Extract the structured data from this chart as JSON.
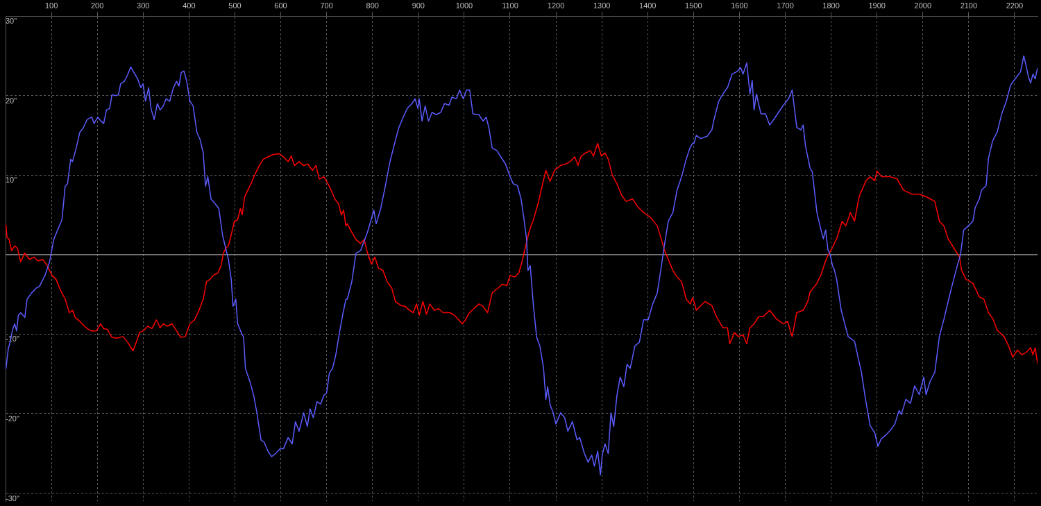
{
  "chart_data": {
    "type": "line",
    "xlim": [
      0,
      2250
    ],
    "xticks": [
      100,
      200,
      300,
      400,
      500,
      600,
      700,
      800,
      900,
      1000,
      1100,
      1200,
      1300,
      1400,
      1500,
      1600,
      1700,
      1800,
      1900,
      2000,
      2100,
      2200
    ],
    "ylim": [
      -31,
      30
    ],
    "yticks": [
      {
        "value": 30,
        "label": "30\""
      },
      {
        "value": 20,
        "label": "20\""
      },
      {
        "value": 10,
        "label": "10\""
      },
      {
        "value": -10,
        "label": "-10\""
      },
      {
        "value": -20,
        "label": "-20\""
      },
      {
        "value": -30,
        "label": "-30\""
      }
    ],
    "grid": true,
    "ref_lines": [
      {
        "axis": "y",
        "value": 0,
        "color": "#a0a0a0"
      }
    ],
    "series": [
      {
        "color": "#5c5cff",
        "x": [
          1,
          6,
          10,
          16,
          20,
          24,
          28,
          33,
          42,
          47,
          57,
          67,
          74,
          86,
          96,
          105,
          115,
          123,
          130,
          135,
          142,
          146,
          154,
          162,
          169,
          178,
          188,
          193,
          201,
          208,
          214,
          220,
          227,
          232,
          240,
          246,
          251,
          259,
          266,
          273,
          280,
          288,
          295,
          300,
          305,
          312,
          317,
          324,
          331,
          337,
          344,
          350,
          358,
          366,
          373,
          378,
          383,
          389,
          395,
          402,
          409,
          417,
          424,
          431,
          436,
          441,
          448,
          457,
          465,
          473,
          480,
          486,
          492,
          496,
          502,
          506,
          514,
          519,
          523,
          533,
          541,
          548,
          557,
          564,
          572,
          580,
          589,
          599,
          606,
          616,
          625,
          632,
          640,
          650,
          658,
          664,
          671,
          679,
          687,
          694,
          700,
          706,
          713,
          720,
          728,
          735,
          742,
          745,
          755,
          764,
          774,
          789,
          803,
          808,
          818,
          828,
          837,
          847,
          857,
          867,
          876,
          886,
          893,
          899,
          902,
          908,
          915,
          922,
          930,
          939,
          949,
          957,
          967,
          973,
          983,
          990,
          998,
          1005,
          1012,
          1019,
          1032,
          1041,
          1048,
          1054,
          1061,
          1071,
          1080,
          1090,
          1100,
          1107,
          1116,
          1124,
          1131,
          1136,
          1139,
          1144,
          1151,
          1158,
          1165,
          1173,
          1178,
          1182,
          1187,
          1194,
          1200,
          1210,
          1219,
          1226,
          1236,
          1246,
          1252,
          1262,
          1270,
          1278,
          1284,
          1291,
          1297,
          1301,
          1307,
          1314,
          1320,
          1326,
          1333,
          1340,
          1348,
          1355,
          1362,
          1372,
          1382,
          1391,
          1401,
          1411,
          1421,
          1430,
          1437,
          1445,
          1455,
          1464,
          1474,
          1484,
          1492,
          1498,
          1501,
          1506,
          1516,
          1530,
          1540,
          1545,
          1555,
          1564,
          1574,
          1584,
          1594,
          1603,
          1608,
          1616,
          1623,
          1628,
          1632,
          1637,
          1647,
          1657,
          1666,
          1676,
          1696,
          1707,
          1715,
          1725,
          1734,
          1739,
          1744,
          1754,
          1759,
          1769,
          1778,
          1783,
          1788,
          1793,
          1798,
          1803,
          1807,
          1812,
          1822,
          1837,
          1851,
          1866,
          1875,
          1885,
          1895,
          1902,
          1909,
          1919,
          1929,
          1939,
          1948,
          1953,
          1963,
          1973,
          1982,
          1992,
          2002,
          2007,
          2016,
          2026,
          2036,
          2046,
          2055,
          2065,
          2075,
          2082,
          2089,
          2099,
          2109,
          2114,
          2123,
          2128,
          2138,
          2143,
          2152,
          2162,
          2172,
          2182,
          2191,
          2201,
          2213,
          2220,
          2225,
          2230,
          2235,
          2240,
          2245,
          2250
        ],
        "values": [
          -14.3,
          -11.8,
          -11.0,
          -9.3,
          -8.7,
          -9.6,
          -7.6,
          -7.3,
          -7.9,
          -5.6,
          -4.8,
          -4.2,
          -4.0,
          -2.6,
          -0.9,
          1.9,
          3.3,
          4.4,
          8.6,
          8.9,
          12.0,
          11.7,
          13.4,
          15.4,
          15.9,
          17.0,
          17.3,
          16.5,
          17.3,
          16.8,
          16.5,
          18.2,
          18.4,
          20.1,
          20.0,
          20.1,
          21.5,
          21.8,
          22.6,
          23.6,
          22.9,
          22.1,
          21.0,
          21.5,
          19.3,
          21.0,
          18.4,
          17.0,
          19.0,
          18.2,
          18.7,
          19.6,
          19.3,
          21.0,
          21.8,
          21.2,
          22.9,
          23.1,
          21.8,
          19.3,
          18.7,
          15.4,
          14.5,
          12.8,
          8.6,
          9.8,
          7.0,
          6.4,
          5.8,
          2.5,
          0.8,
          -0.6,
          -3.1,
          -6.5,
          -5.6,
          -8.7,
          -9.8,
          -10.4,
          -14.3,
          -16.0,
          -17.7,
          -19.9,
          -23.3,
          -23.6,
          -24.7,
          -25.4,
          -25.0,
          -24.4,
          -24.4,
          -23.0,
          -23.8,
          -21.0,
          -22.2,
          -19.9,
          -21.6,
          -19.4,
          -20.5,
          -18.5,
          -18.8,
          -17.7,
          -17.4,
          -14.9,
          -14.3,
          -12.6,
          -9.8,
          -7.6,
          -5.6,
          -5.6,
          -3.4,
          0.2,
          0.5,
          2.8,
          5.6,
          3.9,
          5.8,
          8.6,
          11.4,
          13.7,
          15.9,
          17.3,
          18.4,
          19.0,
          19.6,
          18.4,
          19.6,
          16.8,
          18.7,
          16.8,
          17.9,
          17.6,
          17.9,
          19.0,
          18.8,
          19.8,
          19.6,
          20.7,
          19.6,
          20.7,
          20.7,
          17.7,
          17.6,
          16.8,
          17.3,
          15.9,
          13.4,
          13.1,
          12.3,
          11.4,
          9.8,
          8.9,
          8.7,
          7.0,
          4.2,
          1.9,
          -2.0,
          -1.4,
          -6.5,
          -10.4,
          -11.5,
          -14.3,
          -18.2,
          -16.6,
          -18.8,
          -19.9,
          -21.3,
          -19.9,
          -20.5,
          -22.2,
          -21.0,
          -23.3,
          -23.0,
          -25.0,
          -26.1,
          -25.2,
          -26.6,
          -24.7,
          -27.7,
          -25.2,
          -23.8,
          -25.0,
          -19.9,
          -21.6,
          -17.7,
          -15.4,
          -16.6,
          -13.8,
          -14.3,
          -11.5,
          -11.0,
          -8.2,
          -8.2,
          -6.2,
          -4.8,
          -1.4,
          1.4,
          4.2,
          5.3,
          8.1,
          9.8,
          12.0,
          13.4,
          14.0,
          14.0,
          15.0,
          14.6,
          14.9,
          15.7,
          17.1,
          19.3,
          20.2,
          21.0,
          22.7,
          23.0,
          23.5,
          22.7,
          24.1,
          20.2,
          21.9,
          18.2,
          20.2,
          17.7,
          17.7,
          16.3,
          17.1,
          18.8,
          19.6,
          20.7,
          16.0,
          15.7,
          16.3,
          13.7,
          10.9,
          10.4,
          5.3,
          3.1,
          2.0,
          3.1,
          0.6,
          0.0,
          -1.4,
          -1.9,
          -3.1,
          -7.0,
          -10.3,
          -10.9,
          -14.8,
          -18.2,
          -21.5,
          -22.4,
          -24.1,
          -23.2,
          -22.7,
          -22.1,
          -21.3,
          -19.6,
          -20.1,
          -18.2,
          -18.7,
          -16.5,
          -17.6,
          -15.4,
          -17.6,
          -15.9,
          -14.8,
          -10.3,
          -8.1,
          -5.9,
          -3.6,
          -1.4,
          0.0,
          3.1,
          3.6,
          4.2,
          5.9,
          7.0,
          8.1,
          8.7,
          12.1,
          14.3,
          15.4,
          17.7,
          19.3,
          21.3,
          22.1,
          23.0,
          25.0,
          23.8,
          22.4,
          21.6,
          22.7,
          22.1,
          23.5
        ]
      },
      {
        "color": "#ff0000",
        "x": [
          1,
          3,
          8,
          13,
          20,
          26,
          33,
          42,
          52,
          62,
          71,
          81,
          91,
          101,
          110,
          120,
          130,
          139,
          146,
          152,
          162,
          172,
          181,
          188,
          198,
          207,
          214,
          222,
          232,
          243,
          256,
          266,
          278,
          285,
          292,
          300,
          310,
          319,
          329,
          337,
          344,
          353,
          363,
          373,
          382,
          392,
          402,
          412,
          421,
          431,
          438,
          446,
          453,
          463,
          470,
          475,
          480,
          486,
          492,
          499,
          506,
          512,
          516,
          521,
          528,
          535,
          543,
          553,
          562,
          572,
          584,
          596,
          606,
          616,
          623,
          630,
          640,
          650,
          659,
          669,
          677,
          684,
          694,
          703,
          710,
          718,
          726,
          732,
          737,
          742,
          745,
          755,
          764,
          774,
          782,
          789,
          798,
          805,
          813,
          823,
          832,
          842,
          850,
          862,
          871,
          881,
          889,
          896,
          902,
          910,
          918,
          925,
          935,
          944,
          954,
          969,
          978,
          988,
          996,
          1003,
          1009,
          1017,
          1032,
          1041,
          1051,
          1061,
          1074,
          1083,
          1093,
          1100,
          1110,
          1119,
          1126,
          1134,
          1142,
          1151,
          1161,
          1171,
          1178,
          1187,
          1197,
          1210,
          1221,
          1231,
          1241,
          1248,
          1255,
          1265,
          1275,
          1282,
          1291,
          1299,
          1307,
          1314,
          1323,
          1333,
          1343,
          1353,
          1367,
          1377,
          1391,
          1406,
          1421,
          1430,
          1437,
          1445,
          1455,
          1464,
          1474,
          1484,
          1493,
          1498,
          1501,
          1506,
          1516,
          1525,
          1540,
          1550,
          1564,
          1574,
          1579,
          1589,
          1598,
          1608,
          1616,
          1623,
          1632,
          1642,
          1652,
          1666,
          1681,
          1696,
          1705,
          1715,
          1725,
          1739,
          1749,
          1754,
          1769,
          1778,
          1788,
          1793,
          1803,
          1812,
          1824,
          1832,
          1842,
          1851,
          1861,
          1876,
          1885,
          1895,
          1900,
          1910,
          1929,
          1944,
          1958,
          1977,
          1992,
          2007,
          2026,
          2036,
          2046,
          2055,
          2070,
          2080,
          2084,
          2094,
          2109,
          2123,
          2133,
          2143,
          2153,
          2162,
          2177,
          2187,
          2196,
          2206,
          2216,
          2225,
          2235,
          2240,
          2245,
          2250
        ],
        "values": [
          3.7,
          2.2,
          1.9,
          0.5,
          1.1,
          0.8,
          -0.9,
          0.2,
          -0.6,
          -0.3,
          -0.8,
          -0.6,
          -1.4,
          -2.6,
          -3.1,
          -4.5,
          -5.6,
          -7.3,
          -7.0,
          -7.9,
          -8.4,
          -9.0,
          -9.4,
          -9.6,
          -9.6,
          -8.7,
          -9.3,
          -9.4,
          -10.4,
          -10.5,
          -10.3,
          -11.0,
          -12.1,
          -11.0,
          -9.8,
          -9.6,
          -9.0,
          -9.3,
          -8.2,
          -9.2,
          -8.7,
          -9.0,
          -8.7,
          -9.6,
          -10.4,
          -10.3,
          -8.7,
          -8.2,
          -7.1,
          -5.6,
          -3.4,
          -3.1,
          -2.6,
          -2.3,
          -1.4,
          0.2,
          0.8,
          1.1,
          2.5,
          4.2,
          4.4,
          5.8,
          5.0,
          7.2,
          8.1,
          8.9,
          10.0,
          11.2,
          12.0,
          12.3,
          12.6,
          12.7,
          12.3,
          11.7,
          12.4,
          11.2,
          11.7,
          11.2,
          11.4,
          10.6,
          11.2,
          9.5,
          9.8,
          8.9,
          8.1,
          7.0,
          6.4,
          5.0,
          5.6,
          3.6,
          3.9,
          2.8,
          1.9,
          1.4,
          1.9,
          0.2,
          -1.2,
          -0.3,
          -1.7,
          -2.0,
          -3.4,
          -4.2,
          -5.9,
          -6.4,
          -6.5,
          -7.0,
          -7.3,
          -6.2,
          -7.6,
          -5.9,
          -7.5,
          -6.2,
          -7.0,
          -6.8,
          -7.3,
          -7.3,
          -7.6,
          -8.2,
          -8.7,
          -8.2,
          -7.5,
          -7.0,
          -6.2,
          -6.5,
          -7.3,
          -4.8,
          -4.2,
          -3.7,
          -3.9,
          -2.6,
          -2.8,
          -2.3,
          -0.9,
          1.1,
          3.0,
          4.4,
          6.4,
          8.9,
          10.6,
          9.2,
          10.6,
          11.2,
          11.4,
          11.7,
          12.3,
          11.2,
          12.4,
          12.8,
          13.1,
          12.4,
          14.0,
          12.4,
          12.8,
          12.0,
          10.0,
          8.9,
          7.5,
          6.7,
          7.0,
          6.1,
          5.3,
          4.7,
          3.6,
          1.9,
          0.5,
          -0.6,
          -2.0,
          -2.8,
          -3.4,
          -5.6,
          -6.2,
          -5.4,
          -5.9,
          -7.0,
          -6.4,
          -5.9,
          -6.4,
          -7.8,
          -9.2,
          -9.2,
          -11.2,
          -9.8,
          -10.3,
          -10.1,
          -11.2,
          -9.2,
          -8.7,
          -7.8,
          -7.8,
          -7.0,
          -8.1,
          -8.7,
          -8.4,
          -10.3,
          -7.3,
          -7.0,
          -5.9,
          -4.7,
          -3.6,
          -2.5,
          -0.8,
          -0.1,
          0.9,
          2.0,
          4.2,
          3.6,
          5.3,
          4.2,
          7.3,
          9.3,
          9.8,
          9.3,
          10.5,
          9.8,
          9.8,
          9.5,
          8.1,
          7.6,
          7.6,
          7.3,
          6.7,
          4.2,
          3.6,
          2.0,
          0.6,
          -0.3,
          -1.9,
          -3.1,
          -3.6,
          -5.3,
          -5.6,
          -7.3,
          -8.1,
          -9.5,
          -10.3,
          -11.5,
          -12.9,
          -12.0,
          -12.6,
          -12.3,
          -11.7,
          -12.6,
          -11.7,
          -13.7
        ]
      }
    ]
  }
}
